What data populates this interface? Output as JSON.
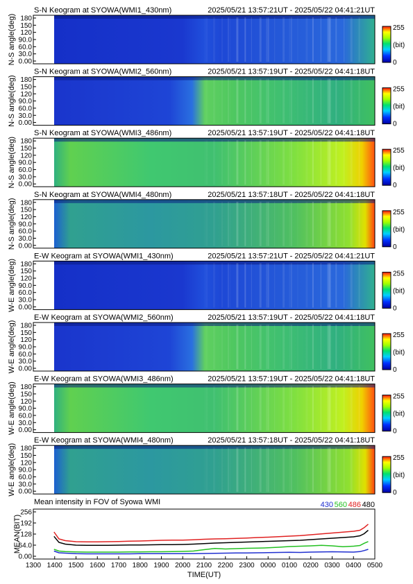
{
  "keograms": [
    {
      "title": "S-N Keogram at SYOWA(WMI1_430nm)",
      "time_range": "2025/05/21 13:57:21UT - 2025/05/22 04:41:21UT",
      "ylabel": "N-S angle(deg)",
      "profile": "dim"
    },
    {
      "title": "S-N Keogram at SYOWA(WMI2_560nm)",
      "time_range": "2025/05/21 13:57:19UT - 2025/05/22 04:41:18UT",
      "ylabel": "N-S angle(deg)",
      "profile": "green"
    },
    {
      "title": "S-N Keogram at SYOWA(WMI3_486nm)",
      "time_range": "2025/05/21 13:57:19UT - 2025/05/22 04:41:18UT",
      "ylabel": "N-S angle(deg)",
      "profile": "bright"
    },
    {
      "title": "S-N Keogram at SYOWA(WMI4_480nm)",
      "time_range": "2025/05/21 13:57:18UT - 2025/05/22 04:41:18UT",
      "ylabel": "N-S angle(deg)",
      "profile": "medium"
    },
    {
      "title": "E-W Keogram at SYOWA(WMI1_430nm)",
      "time_range": "2025/05/21 13:57:21UT - 2025/05/22 04:41:21UT",
      "ylabel": "W-E angle(deg)",
      "profile": "dim"
    },
    {
      "title": "E-W Keogram at SYOWA(WMI2_560nm)",
      "time_range": "2025/05/21 13:57:19UT - 2025/05/22 04:41:18UT",
      "ylabel": "W-E angle(deg)",
      "profile": "green"
    },
    {
      "title": "E-W Keogram at SYOWA(WMI3_486nm)",
      "time_range": "2025/05/21 13:57:19UT - 2025/05/22 04:41:18UT",
      "ylabel": "W-E angle(deg)",
      "profile": "bright"
    },
    {
      "title": "E-W Keogram at SYOWA(WMI4_480nm)",
      "time_range": "2025/05/21 13:57:18UT - 2025/05/22 04:41:18UT",
      "ylabel": "W-E angle(deg)",
      "profile": "medium"
    }
  ],
  "keogram_yticks": [
    "180",
    "150",
    "120",
    "90.0",
    "60.0",
    "30.0",
    "0.00"
  ],
  "colorbar": {
    "max": "255",
    "unit": "(bit)",
    "min": "0"
  },
  "chart_data": {
    "type": "line",
    "title": "Mean intensity in FOV of Syowa WMI",
    "xlabel": "TIME(UT)",
    "ylabel": "MEAN(BIT)",
    "ylim": [
      0,
      256
    ],
    "yticks": [
      "256",
      "192",
      "128",
      "64.0",
      "0.00"
    ],
    "xticks": [
      "1300",
      "1400",
      "1500",
      "1600",
      "1700",
      "1800",
      "1900",
      "2000",
      "2100",
      "2200",
      "2300",
      "0000",
      "0100",
      "0200",
      "0300",
      "0400",
      "0500"
    ],
    "x": [
      13.97,
      14.2,
      14.5,
      15,
      15.5,
      16,
      16.5,
      17,
      17.5,
      18,
      18.5,
      19,
      19.5,
      20,
      20.5,
      21,
      21.5,
      22,
      22.5,
      23,
      23.5,
      24,
      24.5,
      25,
      25.5,
      26,
      26.5,
      27,
      27.5,
      28,
      28.3,
      28.5,
      28.69
    ],
    "series": [
      {
        "name": "430",
        "color": "#1f2fd0",
        "values": [
          30,
          20,
          18,
          15,
          14,
          14,
          14,
          14,
          14,
          15,
          15,
          15,
          15,
          15,
          15,
          16,
          17,
          18,
          19,
          19,
          20,
          21,
          22,
          23,
          22,
          24,
          25,
          26,
          25,
          24,
          27,
          33,
          40
        ]
      },
      {
        "name": "560",
        "color": "#22c020",
        "values": [
          40,
          30,
          27,
          25,
          24,
          24,
          24,
          24,
          25,
          25,
          26,
          26,
          27,
          28,
          30,
          38,
          45,
          42,
          44,
          46,
          47,
          49,
          52,
          56,
          58,
          60,
          63,
          60,
          55,
          58,
          62,
          75,
          85
        ]
      },
      {
        "name": "486",
        "color": "#e02020",
        "values": [
          140,
          100,
          90,
          84,
          83,
          83,
          84,
          85,
          87,
          88,
          90,
          92,
          93,
          93,
          95,
          98,
          100,
          101,
          103,
          105,
          108,
          110,
          113,
          116,
          119,
          124,
          129,
          134,
          139,
          144,
          150,
          165,
          185
        ]
      },
      {
        "name": "480",
        "color": "#000000",
        "values": [
          115,
          80,
          70,
          64,
          63,
          63,
          63,
          64,
          65,
          65,
          66,
          67,
          67,
          68,
          70,
          73,
          76,
          78,
          80,
          82,
          84,
          86,
          88,
          90,
          92,
          96,
          100,
          104,
          108,
          112,
          118,
          130,
          150
        ]
      }
    ]
  }
}
